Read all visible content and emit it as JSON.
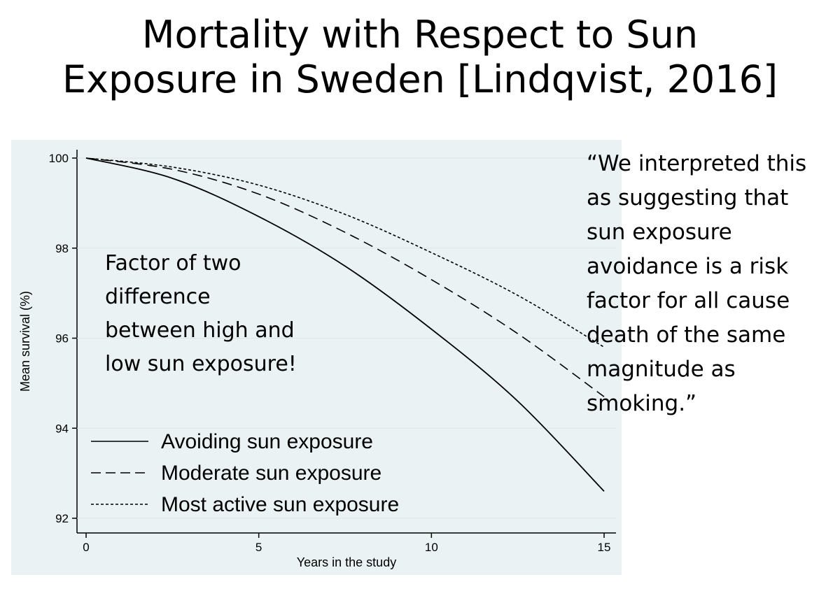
{
  "title_lines": [
    "Mortality with Respect to Sun",
    "Exposure in Sweden [Lindqvist, 2016]"
  ],
  "annotation_lines": [
    "Factor of two",
    "difference",
    "between high and",
    "low sun exposure!"
  ],
  "quote_lines": [
    "“We interpreted this",
    "as suggesting that",
    "sun exposure",
    "avoidance is a risk",
    "factor for all cause",
    "death of the same",
    "magnitude as",
    "smoking.”"
  ],
  "chart_data": {
    "type": "line",
    "xlabel": "Years in the study",
    "ylabel": "Mean survival (%)",
    "xlim": [
      0,
      15
    ],
    "ylim": [
      92,
      100
    ],
    "x_ticks": [
      0,
      5,
      10,
      15
    ],
    "y_ticks": [
      92,
      94,
      96,
      98,
      100
    ],
    "legend_position": "bottom-left",
    "x": [
      0,
      2.5,
      5,
      7.5,
      10,
      12.5,
      15
    ],
    "series": [
      {
        "name": "Avoiding sun exposure",
        "style": "solid",
        "values": [
          100,
          99.55,
          98.7,
          97.6,
          96.2,
          94.6,
          92.6
        ]
      },
      {
        "name": "Moderate sun exposure",
        "style": "dashed",
        "values": [
          100,
          99.75,
          99.2,
          98.35,
          97.3,
          96.1,
          94.7
        ]
      },
      {
        "name": "Most active sun exposure",
        "style": "dotted",
        "values": [
          100,
          99.8,
          99.4,
          98.75,
          97.9,
          96.95,
          95.8
        ]
      }
    ],
    "colors": {
      "line": "#000000",
      "panel_background": "#eaf2f3",
      "axis": "#000000"
    }
  }
}
